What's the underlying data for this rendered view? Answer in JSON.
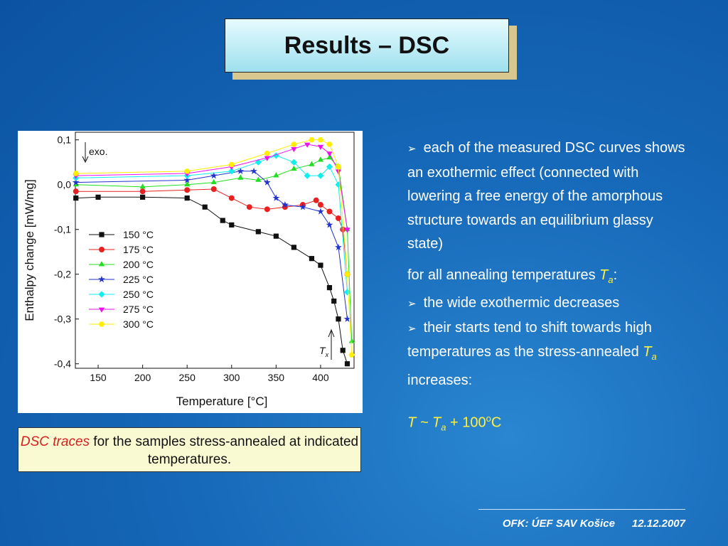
{
  "header": {
    "title": "Results – DSC"
  },
  "chart_data": {
    "type": "scatter",
    "xlabel": "Temperature [°C]",
    "ylabel": "Enthalpy change [mW/mg]",
    "annotations": [
      {
        "text": "exo."
      },
      {
        "text": "T",
        "subscript": "x"
      }
    ],
    "xlim": [
      124.4,
      437.6
    ],
    "xticks": [
      150,
      200,
      250,
      300,
      350,
      400
    ],
    "ylim": [
      -0.41,
      0.117
    ],
    "yticks": [
      {
        "value": 0.1,
        "label": "0,1"
      },
      {
        "value": 0,
        "label": "0,0"
      },
      {
        "value": -0.1,
        "label": "-0,1"
      },
      {
        "value": -0.2,
        "label": "-0,2"
      },
      {
        "value": -0.3,
        "label": "-0,3"
      },
      {
        "value": -0.4,
        "label": "-0,4"
      }
    ],
    "series": [
      {
        "name": "150 °C",
        "color": "#111111",
        "marker": "square",
        "x": [
          125,
          150,
          200,
          250,
          270,
          290,
          300,
          330,
          350,
          370,
          390,
          400,
          410,
          415,
          420,
          425,
          430
        ],
        "values": [
          -0.03,
          -0.028,
          -0.028,
          -0.03,
          -0.05,
          -0.08,
          -0.09,
          -0.105,
          -0.115,
          -0.14,
          -0.165,
          -0.18,
          -0.23,
          -0.26,
          -0.3,
          -0.37,
          -0.4
        ]
      },
      {
        "name": "175 °C",
        "color": "#e82020",
        "marker": "circle",
        "x": [
          125,
          200,
          250,
          280,
          300,
          320,
          340,
          360,
          380,
          395,
          400,
          410,
          420,
          425,
          430
        ],
        "values": [
          -0.015,
          -0.015,
          -0.012,
          -0.01,
          -0.03,
          -0.05,
          -0.055,
          -0.05,
          -0.045,
          -0.035,
          -0.045,
          -0.06,
          -0.075,
          -0.1,
          -0.2
        ]
      },
      {
        "name": "200 °C",
        "color": "#22dd22",
        "marker": "triangle-up",
        "x": [
          125,
          200,
          250,
          280,
          310,
          330,
          350,
          370,
          390,
          400,
          410,
          420,
          430,
          435
        ],
        "values": [
          0.0,
          -0.005,
          0.0,
          0.005,
          0.015,
          0.01,
          0.02,
          0.035,
          0.045,
          0.055,
          0.06,
          0.04,
          -0.1,
          -0.35
        ]
      },
      {
        "name": "225 °C",
        "color": "#2233cc",
        "marker": "star",
        "x": [
          125,
          250,
          280,
          310,
          325,
          340,
          350,
          360,
          380,
          400,
          410,
          420,
          430
        ],
        "values": [
          0.005,
          0.01,
          0.02,
          0.03,
          0.03,
          0.005,
          -0.03,
          -0.045,
          -0.05,
          -0.06,
          -0.09,
          -0.14,
          -0.3
        ]
      },
      {
        "name": "250 °C",
        "color": "#11eeee",
        "marker": "diamond",
        "x": [
          125,
          250,
          300,
          330,
          350,
          370,
          385,
          400,
          410,
          420,
          430
        ],
        "values": [
          0.015,
          0.02,
          0.03,
          0.05,
          0.065,
          0.05,
          0.02,
          0.02,
          0.04,
          0.0,
          -0.24
        ]
      },
      {
        "name": "275 °C",
        "color": "#ee11ee",
        "marker": "triangle-down",
        "x": [
          125,
          250,
          300,
          340,
          370,
          385,
          400,
          410,
          420,
          430
        ],
        "values": [
          0.02,
          0.025,
          0.04,
          0.06,
          0.08,
          0.09,
          0.085,
          0.07,
          0.03,
          -0.1
        ]
      },
      {
        "name": "300 °C",
        "color": "#ffee00",
        "marker": "hexagon",
        "x": [
          125,
          250,
          300,
          340,
          370,
          390,
          400,
          410,
          420,
          430,
          435
        ],
        "values": [
          0.025,
          0.03,
          0.045,
          0.07,
          0.09,
          0.1,
          0.1,
          0.09,
          0.04,
          -0.2,
          -0.38
        ]
      }
    ]
  },
  "caption": {
    "highlight": "DSC traces",
    "text": " for the samples stress-annealed at indicated temperatures."
  },
  "body": {
    "bullet1": "each of the measured DSC curves shows an exothermic effect (connected with lowering a free energy of the amorphous structure towards an equilibrium glassy state)",
    "intro": {
      "text": "for all annealing temperatures ",
      "symbol": "T",
      "subscript": "a",
      "suffix": ":"
    },
    "bullet2": "the wide exothermic decreases",
    "bullet3": {
      "text": "their starts tend to shift towards high temperatures as the stress-annealed ",
      "symbol": "T",
      "subscript": "a",
      "suffix": " increases:"
    },
    "formula": {
      "prefix": "T ~ ",
      "symbol": "T",
      "subscript": "a",
      "text": " + 100",
      "superscript": "o",
      "unit": "C"
    }
  },
  "footer": {
    "org": "OFK: ÚEF SAV Košice",
    "date": "12.12.2007"
  }
}
